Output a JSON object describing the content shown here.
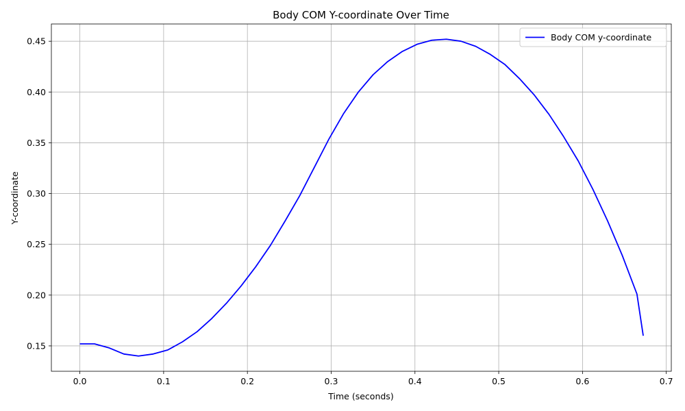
{
  "chart_data": {
    "type": "line",
    "title": "Body COM Y-coordinate Over Time",
    "xlabel": "Time (seconds)",
    "ylabel": "Y-coordinate",
    "xlim": [
      -0.034,
      0.706
    ],
    "ylim": [
      0.125,
      0.467
    ],
    "xticks": [
      0.0,
      0.1,
      0.2,
      0.3,
      0.4,
      0.5,
      0.6,
      0.7
    ],
    "xtick_labels": [
      "0.0",
      "0.1",
      "0.2",
      "0.3",
      "0.4",
      "0.5",
      "0.6",
      "0.7"
    ],
    "yticks": [
      0.15,
      0.2,
      0.25,
      0.3,
      0.35,
      0.4,
      0.45
    ],
    "ytick_labels": [
      "0.15",
      "0.20",
      "0.25",
      "0.30",
      "0.35",
      "0.40",
      "0.45"
    ],
    "grid": true,
    "legend_position": "top-right",
    "series": [
      {
        "name": "Body COM y-coordinate",
        "color": "#0000ff",
        "x": [
          0.0,
          0.0175,
          0.035,
          0.0525,
          0.07,
          0.0875,
          0.105,
          0.1225,
          0.14,
          0.1575,
          0.175,
          0.1925,
          0.21,
          0.2275,
          0.245,
          0.2625,
          0.28,
          0.2975,
          0.315,
          0.3325,
          0.35,
          0.3675,
          0.385,
          0.4025,
          0.42,
          0.4375,
          0.455,
          0.4725,
          0.49,
          0.5075,
          0.525,
          0.5425,
          0.56,
          0.5775,
          0.595,
          0.6125,
          0.63,
          0.6475,
          0.665,
          0.6725
        ],
        "y": [
          0.152,
          0.152,
          0.148,
          0.142,
          0.14,
          0.142,
          0.146,
          0.154,
          0.164,
          0.177,
          0.192,
          0.209,
          0.228,
          0.249,
          0.273,
          0.298,
          0.326,
          0.354,
          0.379,
          0.4,
          0.417,
          0.43,
          0.44,
          0.447,
          0.451,
          0.452,
          0.45,
          0.445,
          0.437,
          0.427,
          0.413,
          0.397,
          0.378,
          0.356,
          0.332,
          0.304,
          0.273,
          0.239,
          0.201,
          0.16
        ]
      }
    ]
  }
}
